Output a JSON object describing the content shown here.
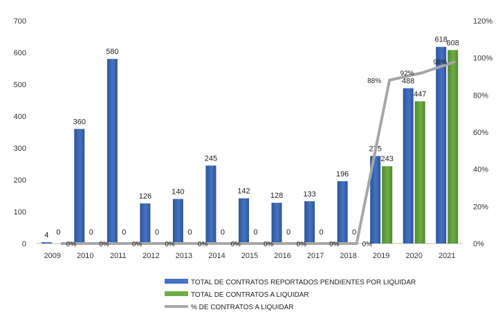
{
  "chart_data": {
    "type": "bar",
    "categories": [
      "2009",
      "2010",
      "2011",
      "2012",
      "2013",
      "2014",
      "2015",
      "2016",
      "2017",
      "2018",
      "2019",
      "2020",
      "2021"
    ],
    "ylim": [
      0,
      700
    ],
    "y2lim": [
      0,
      1.2
    ],
    "yticks": [
      0,
      100,
      200,
      300,
      400,
      500,
      600,
      700
    ],
    "y2ticks": [
      "0%",
      "20%",
      "40%",
      "60%",
      "80%",
      "100%",
      "120%"
    ],
    "grid": false,
    "legend_position": "bottom",
    "series": [
      {
        "name": "TOTAL DE CONTRATOS REPORTADOS PENDIENTES POR LIQUIDAR",
        "kind": "bar",
        "color": "#4472c4",
        "values": [
          4,
          360,
          580,
          126,
          140,
          245,
          142,
          128,
          133,
          196,
          275,
          488,
          618
        ],
        "labels": [
          "4",
          "360",
          "580",
          "126",
          "140",
          "245",
          "142",
          "128",
          "133",
          "196",
          "275",
          "488",
          "618"
        ]
      },
      {
        "name": "TOTAL DE CONTRATOS A LIQUIDAR",
        "kind": "bar",
        "color": "#70ad47",
        "values": [
          0,
          0,
          0,
          0,
          0,
          0,
          0,
          0,
          0,
          0,
          243,
          447,
          608
        ],
        "labels": [
          "0",
          "0",
          "0",
          "0",
          "0",
          "0",
          "0",
          "0",
          "0",
          "0",
          "243",
          "447",
          "608"
        ]
      },
      {
        "name": "% DE CONTRATOS A LIQUIDAR",
        "kind": "line",
        "axis": "right",
        "color": "#a6a6a6",
        "values": [
          0,
          0,
          0,
          0,
          0,
          0,
          0,
          0,
          0,
          0,
          0.88,
          0.92,
          0.98
        ],
        "labels": [
          "0%",
          "0%",
          "0%",
          "0%",
          "0%",
          "0%",
          "0%",
          "0%",
          "0%",
          "0%",
          "88%",
          "92%",
          "98%"
        ]
      }
    ]
  }
}
